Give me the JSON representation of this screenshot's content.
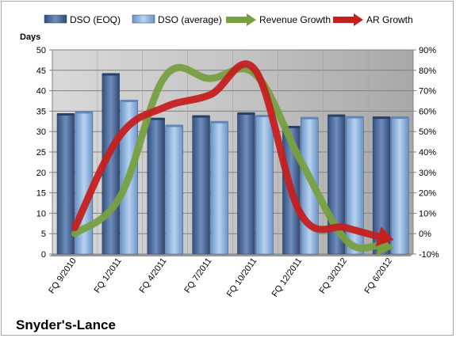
{
  "chart_data": {
    "type": "bar",
    "categories": [
      "FQ 9/2010",
      "FQ 1/2011",
      "FQ 4/2011",
      "FQ 7/2011",
      "FQ 10/2011",
      "FQ 12/2011",
      "FQ 3/2012",
      "FQ 6/2012"
    ],
    "series": [
      {
        "name": "DSO (EOQ)",
        "type": "bar",
        "axis": "left",
        "color": "#4f6d9e",
        "values": [
          34.3,
          44.1,
          33.2,
          33.8,
          34.5,
          31.2,
          34.0,
          33.5
        ]
      },
      {
        "name": "DSO (average)",
        "type": "bar",
        "axis": "left",
        "color": "#8eb2dc",
        "values": [
          34.8,
          37.6,
          31.5,
          32.4,
          33.9,
          33.4,
          33.6,
          33.5
        ]
      },
      {
        "name": "Revenue Growth",
        "type": "line",
        "axis": "right",
        "color": "#77a041",
        "values": [
          0.0,
          18.0,
          77.0,
          76.0,
          78.0,
          36.0,
          -3.0,
          -7.0
        ]
      },
      {
        "name": "AR Growth",
        "type": "line",
        "axis": "right",
        "color": "#c42020",
        "values": [
          3.0,
          48.0,
          62.0,
          68.0,
          80.0,
          10.0,
          3.0,
          -3.0
        ]
      }
    ],
    "title": "",
    "company_label": "Snyder's-Lance",
    "ylabel": "Days",
    "ylim": [
      0,
      50
    ],
    "yticks": [
      "0",
      "5",
      "10",
      "15",
      "20",
      "25",
      "30",
      "35",
      "40",
      "45",
      "50"
    ],
    "y2lim": [
      -10,
      90
    ],
    "y2ticks": [
      "-10%",
      "0%",
      "10%",
      "20%",
      "30%",
      "40%",
      "50%",
      "60%",
      "70%",
      "80%",
      "90%"
    ],
    "grid": true,
    "legend_position": "top",
    "colors": {
      "plot_background": "#c0c0c0",
      "gridline": "#808080"
    }
  }
}
